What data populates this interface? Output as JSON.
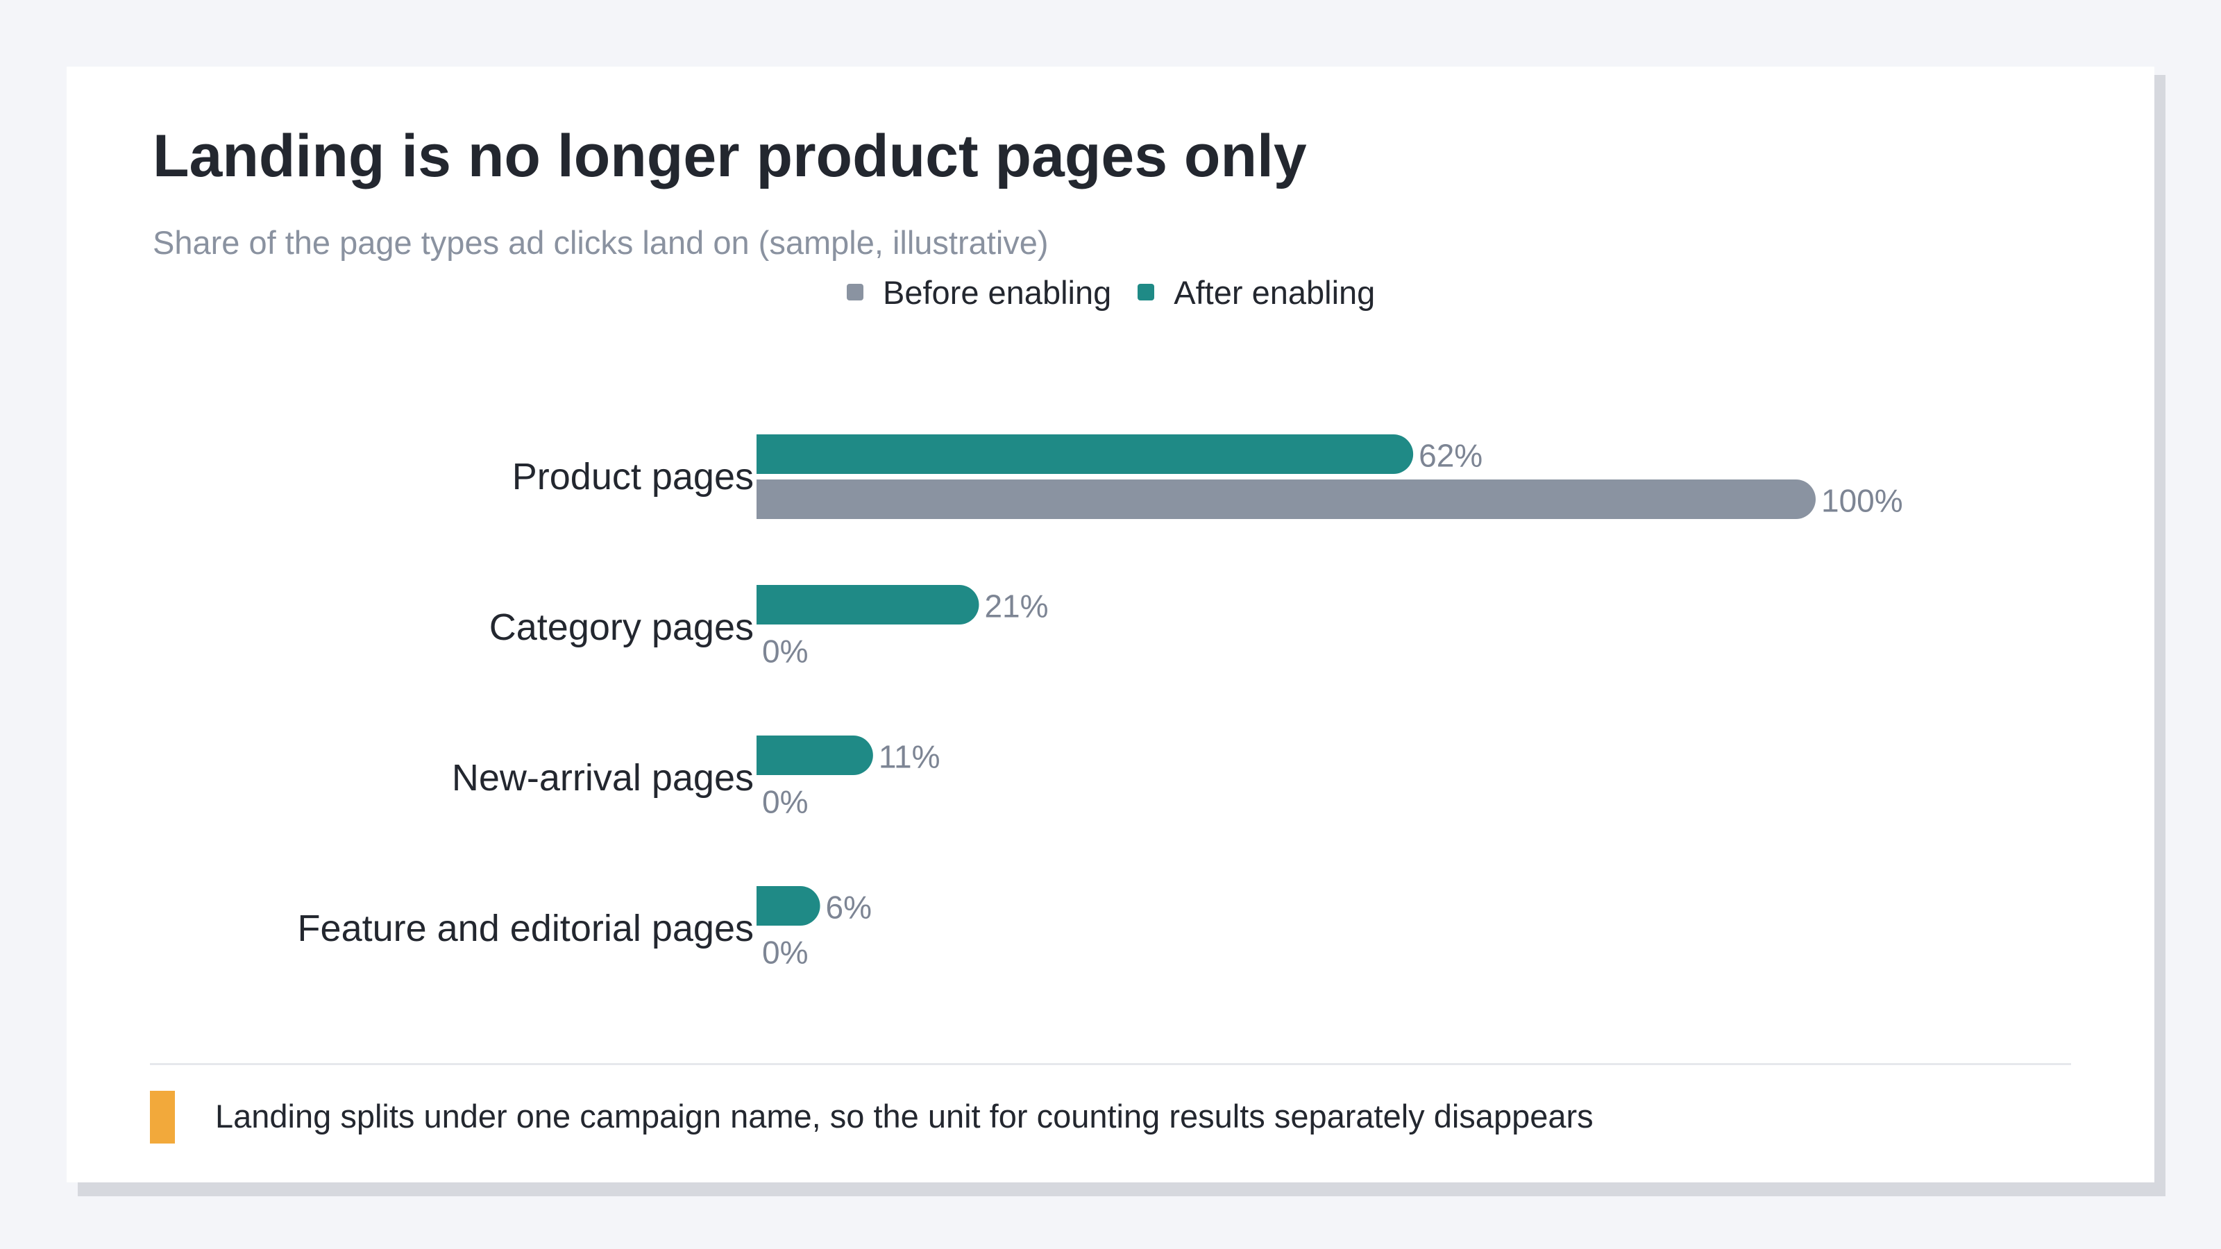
{
  "title": "Landing is no longer product pages only",
  "subtitle": "Share of the page types ad clicks land on (sample, illustrative)",
  "note": "Landing splits under one campaign name, so the unit for counting results separately disappears",
  "colors": {
    "after": "#1f8a86",
    "before": "#8a93a1",
    "note_marker": "#f2a93b"
  },
  "legend": {
    "items": [
      {
        "label": "Before enabling",
        "color": "#8a93a1"
      },
      {
        "label": "After enabling",
        "color": "#1f8a86"
      }
    ]
  },
  "chart_data": {
    "type": "bar",
    "orientation": "horizontal",
    "categories": [
      "Product pages",
      "Category pages",
      "New-arrival pages",
      "Feature and editorial pages"
    ],
    "series": [
      {
        "name": "After enabling",
        "values": [
          62,
          21,
          11,
          6
        ]
      },
      {
        "name": "Before enabling",
        "values": [
          100,
          0,
          0,
          0
        ]
      }
    ],
    "value_labels": {
      "After enabling": [
        "62%",
        "21%",
        "11%",
        "6%"
      ],
      "Before enabling": [
        "100%",
        "0%",
        "0%",
        "0%"
      ]
    },
    "xlim": [
      0,
      100
    ],
    "grid": false,
    "legend_position": "top"
  }
}
